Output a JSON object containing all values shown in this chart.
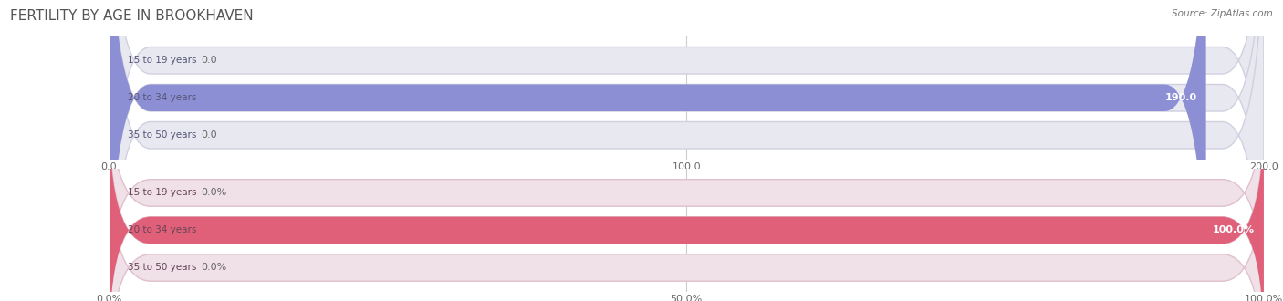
{
  "title": "FERTILITY BY AGE IN BROOKHAVEN",
  "source": "Source: ZipAtlas.com",
  "title_color": "#555555",
  "title_fontsize": 11,
  "background_color": "#ffffff",
  "top_chart": {
    "categories": [
      "15 to 19 years",
      "20 to 34 years",
      "35 to 50 years"
    ],
    "values": [
      0.0,
      190.0,
      0.0
    ],
    "xlim": [
      0,
      200
    ],
    "xticks": [
      0.0,
      100.0,
      200.0
    ],
    "xtick_labels": [
      "0.0",
      "100.0",
      "200.0"
    ],
    "bar_color_full": "#8c8fd4",
    "bar_color_small": "#b0b3e0",
    "bar_bg_color": "#e8e8f0",
    "bar_border_color": "#d0d0e0",
    "label_text_color": "#555577",
    "value_color_inside": "#ffffff",
    "value_color_outside": "#666666",
    "is_percent": false
  },
  "bottom_chart": {
    "categories": [
      "15 to 19 years",
      "20 to 34 years",
      "35 to 50 years"
    ],
    "values": [
      0.0,
      100.0,
      0.0
    ],
    "xlim": [
      0,
      100
    ],
    "xticks": [
      0.0,
      50.0,
      100.0
    ],
    "xtick_labels": [
      "0.0%",
      "50.0%",
      "100.0%"
    ],
    "bar_color_full": "#e0607a",
    "bar_color_small": "#eeaabb",
    "bar_bg_color": "#f0e0e8",
    "bar_border_color": "#e0c0cc",
    "label_text_color": "#664455",
    "value_color_inside": "#ffffff",
    "value_color_outside": "#666666",
    "is_percent": true
  }
}
